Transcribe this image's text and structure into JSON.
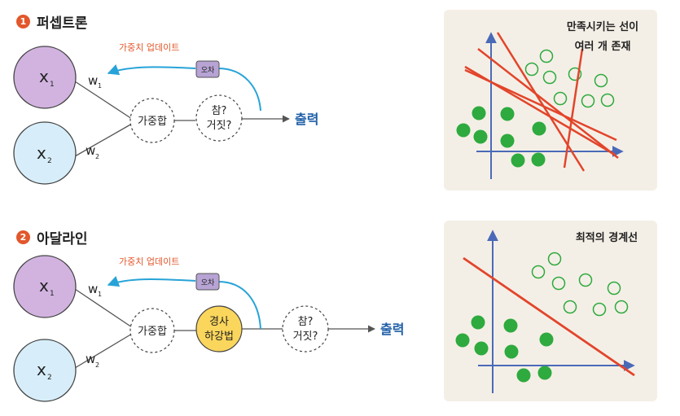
{
  "section1": {
    "number": "1",
    "title": "퍼셉트론",
    "input1": "x",
    "input1_sub": "1",
    "input2": "x",
    "input2_sub": "2",
    "weight1": "w",
    "weight1_sub": "1",
    "weight2": "w",
    "weight2_sub": "2",
    "weighted_sum": "가중합",
    "decision_line1": "참?",
    "decision_line2": "거짓?",
    "output": "출력",
    "error": "오차",
    "weight_update": "가중치 업데이트",
    "panel_label_line1": "만족시키는 선이",
    "panel_label_line2": "여러 개 존재"
  },
  "section2": {
    "number": "2",
    "title": "아달라인",
    "input1": "x",
    "input1_sub": "1",
    "input2": "x",
    "input2_sub": "2",
    "weight1": "w",
    "weight1_sub": "1",
    "weight2": "w",
    "weight2_sub": "2",
    "weighted_sum": "가중합",
    "gradient_line1": "경사",
    "gradient_line2": "하강법",
    "decision_line1": "참?",
    "decision_line2": "거짓?",
    "output": "출력",
    "error": "오차",
    "weight_update": "가중치 업데이트",
    "panel_label": "최적의 경계선"
  },
  "colors": {
    "input1_fill": "#d2b3e0",
    "input2_fill": "#d7eefa",
    "accent_orange": "#e2572b",
    "arrow_blue": "#27a3d8",
    "error_box": "#b7a3d4",
    "gradient_fill": "#fbd65c",
    "green_point": "#2eaa3f",
    "red_line": "#e2452b",
    "axis_blue": "#4a6ab8"
  }
}
